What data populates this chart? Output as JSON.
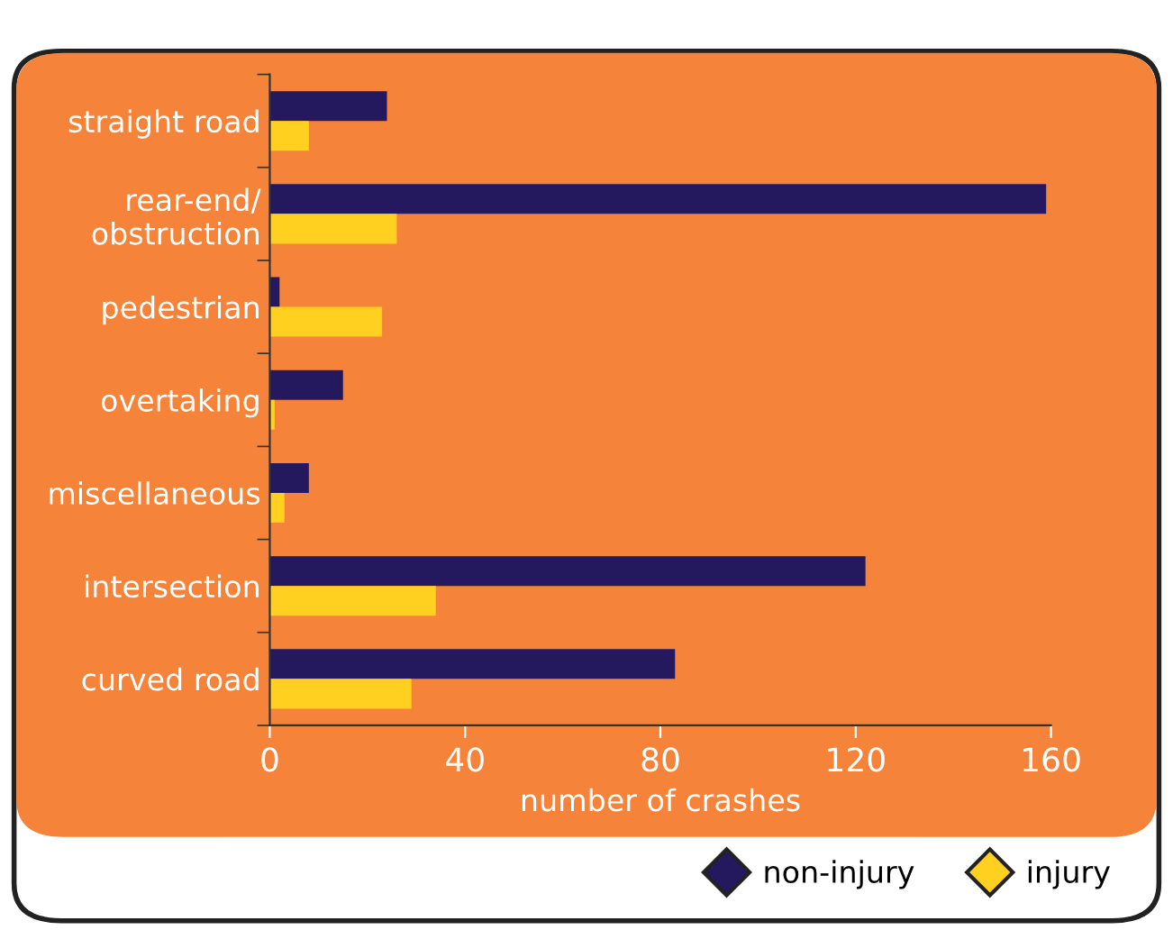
{
  "chart_data": {
    "type": "bar",
    "orientation": "horizontal",
    "categories": [
      "straight road",
      "rear-end/\nobstruction",
      "pedestrian",
      "overtaking",
      "miscellaneous",
      "intersection",
      "curved road"
    ],
    "series": [
      {
        "name": "non-injury",
        "color": "#24195e",
        "values": [
          24,
          159,
          2,
          15,
          8,
          122,
          83
        ]
      },
      {
        "name": "injury",
        "color": "#ffd020",
        "values": [
          8,
          26,
          23,
          1,
          3,
          34,
          29
        ]
      }
    ],
    "xlabel": "number of crashes",
    "xlim": [
      0,
      160
    ],
    "xticks": [
      0,
      40,
      80,
      120,
      160
    ],
    "grid": false,
    "legend": "bottom right",
    "marker": "diamond"
  }
}
